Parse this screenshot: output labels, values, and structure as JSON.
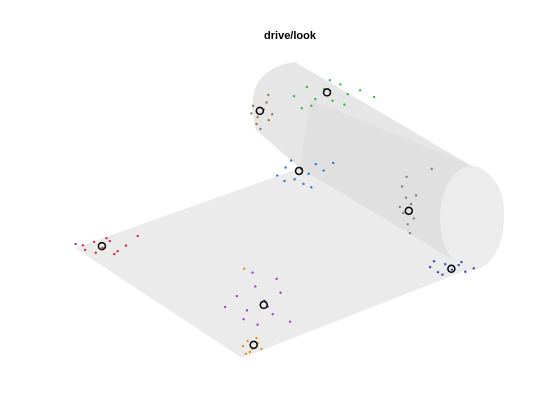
{
  "chart_data": {
    "type": "scatter",
    "title": "drive/look",
    "xlim": [
      0,
      100
    ],
    "ylim": [
      0,
      100
    ],
    "series": [
      {
        "color": "#e0204a",
        "x": [
          13.5,
          15.2,
          16.8,
          18.3,
          19.6,
          21.0,
          22.5,
          17.1,
          19.0,
          14.8,
          20.4,
          24.6
        ],
        "values": [
          41.9,
          40.5,
          42.4,
          41.0,
          42.6,
          40.2,
          41.5,
          39.8,
          43.3,
          41.6,
          39.5,
          43.8
        ]
      },
      {
        "color": "#1f78d8",
        "x": [
          49.5,
          51.0,
          52.6,
          53.8,
          55.1,
          56.4,
          54.2,
          50.8,
          57.8,
          52.0,
          55.6,
          59.5
        ],
        "values": [
          58.2,
          60.1,
          57.3,
          59.8,
          58.6,
          60.9,
          56.2,
          56.9,
          59.4,
          61.8,
          55.4,
          61.2
        ]
      },
      {
        "color": "#9a7650",
        "x": [
          45.2,
          46.0,
          47.1,
          48.0,
          45.8,
          47.6,
          46.5,
          44.9,
          48.6,
          47.9
        ],
        "values": [
          74.8,
          72.1,
          73.9,
          71.4,
          70.5,
          75.6,
          69.3,
          73.0,
          72.8,
          77.4
        ]
      },
      {
        "color": "#22c040",
        "x": [
          52.5,
          54.8,
          56.3,
          57.9,
          59.4,
          60.8,
          62.1,
          55.6,
          58.9,
          61.5,
          64.3,
          66.8,
          53.9
        ],
        "values": [
          77.1,
          79.3,
          76.4,
          78.8,
          76.0,
          79.9,
          77.6,
          74.8,
          80.9,
          75.1,
          78.5,
          76.9,
          74.2
        ]
      },
      {
        "color": "#808080",
        "x": [
          71.8,
          72.5,
          73.4,
          72.0,
          73.9,
          72.8,
          71.4,
          73.2,
          74.3,
          72.6,
          77.1
        ],
        "values": [
          55.6,
          52.9,
          51.4,
          49.3,
          48.0,
          46.6,
          50.7,
          44.5,
          53.5,
          57.9,
          59.8
        ]
      },
      {
        "color": "#4040c8",
        "x": [
          76.8,
          78.2,
          79.5,
          80.7,
          81.9,
          83.1,
          79.0,
          82.4,
          77.5,
          84.6
        ],
        "values": [
          36.4,
          35.2,
          37.1,
          35.8,
          36.9,
          35.3,
          34.6,
          37.6,
          37.8,
          36.1
        ]
      },
      {
        "color": "#a040d0",
        "x": [
          42.3,
          44.1,
          45.6,
          47.2,
          48.7,
          50.1,
          46.0,
          43.5,
          49.4,
          47.8,
          45.1,
          51.8,
          40.2
        ],
        "values": [
          29.5,
          26.1,
          31.8,
          28.4,
          25.2,
          30.3,
          22.7,
          24.0,
          33.6,
          27.0,
          35.1,
          23.4,
          26.9
        ]
      },
      {
        "color": "#e89010",
        "x": [
          43.4,
          44.2,
          45.1,
          46.0,
          44.6,
          45.8,
          43.9,
          46.7,
          43.6
        ],
        "values": [
          17.6,
          18.8,
          17.0,
          18.3,
          16.2,
          19.5,
          15.8,
          16.9,
          36.0
        ]
      },
      {
        "color": "#000000",
        "marker": "circle-open",
        "x": [
          18.2,
          53.4,
          46.4,
          58.4,
          73.0,
          80.6,
          47.1,
          45.3
        ],
        "values": [
          41.4,
          59.3,
          73.6,
          78.0,
          49.8,
          36.0,
          27.4,
          17.9
        ]
      }
    ]
  }
}
